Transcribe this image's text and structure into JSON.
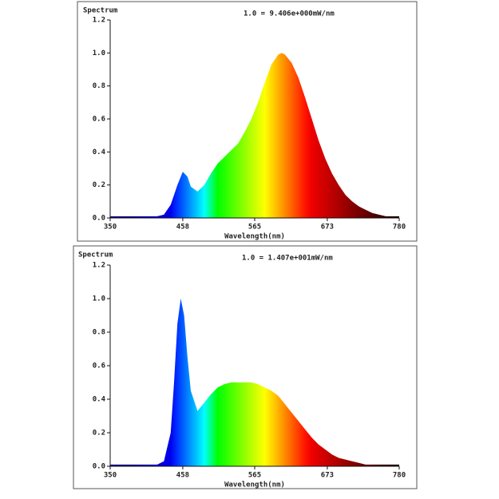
{
  "chart_data": [
    {
      "type": "area",
      "title": "Spectrum",
      "annotation": "1.0 = 9.406e+000mW/nm",
      "x_label": "Wavelength(nm)",
      "x": [
        350,
        360,
        370,
        380,
        390,
        400,
        410,
        420,
        430,
        440,
        450,
        458,
        465,
        470,
        480,
        490,
        500,
        510,
        520,
        530,
        540,
        550,
        560,
        570,
        580,
        590,
        600,
        605,
        610,
        620,
        630,
        640,
        650,
        660,
        670,
        680,
        690,
        700,
        710,
        720,
        730,
        740,
        750,
        760,
        770,
        780
      ],
      "values": [
        0.01,
        0.01,
        0.01,
        0.01,
        0.01,
        0.01,
        0.01,
        0.01,
        0.02,
        0.08,
        0.2,
        0.28,
        0.25,
        0.19,
        0.16,
        0.2,
        0.27,
        0.33,
        0.37,
        0.41,
        0.45,
        0.52,
        0.6,
        0.7,
        0.82,
        0.93,
        0.99,
        1.0,
        0.99,
        0.94,
        0.85,
        0.73,
        0.6,
        0.47,
        0.36,
        0.27,
        0.2,
        0.14,
        0.1,
        0.07,
        0.05,
        0.03,
        0.02,
        0.01,
        0.01,
        0.01
      ],
      "xlim": [
        350,
        780
      ],
      "xticks": [
        350,
        458,
        565,
        673,
        780
      ],
      "ylim": [
        0,
        1.2
      ],
      "yticks": [
        {
          "value": 0,
          "label": "0.0"
        },
        0.2,
        0.4,
        0.6,
        0.8,
        {
          "value": 1,
          "label": "1.0"
        },
        1.2
      ]
    },
    {
      "type": "area",
      "title": "Spectrum",
      "annotation": "1.0 = 1.407e+001mW/nm",
      "x_label": "Wavelength(nm)",
      "x": [
        350,
        360,
        370,
        380,
        390,
        400,
        410,
        420,
        430,
        440,
        445,
        450,
        455,
        460,
        465,
        470,
        480,
        490,
        500,
        510,
        520,
        530,
        540,
        550,
        560,
        570,
        580,
        590,
        600,
        610,
        620,
        630,
        640,
        650,
        660,
        670,
        680,
        690,
        700,
        710,
        720,
        730,
        740,
        750,
        760,
        770,
        780
      ],
      "values": [
        0.01,
        0.01,
        0.01,
        0.01,
        0.01,
        0.01,
        0.01,
        0.01,
        0.03,
        0.2,
        0.5,
        0.85,
        1.0,
        0.9,
        0.65,
        0.45,
        0.33,
        0.38,
        0.43,
        0.47,
        0.49,
        0.5,
        0.5,
        0.5,
        0.5,
        0.49,
        0.47,
        0.45,
        0.42,
        0.37,
        0.32,
        0.27,
        0.22,
        0.17,
        0.13,
        0.1,
        0.07,
        0.05,
        0.04,
        0.03,
        0.02,
        0.01,
        0.01,
        0.01,
        0.01,
        0.01,
        0.01
      ],
      "xlim": [
        350,
        780
      ],
      "xticks": [
        350,
        458,
        565,
        673,
        780
      ],
      "ylim": [
        0,
        1.2
      ],
      "yticks": [
        {
          "value": 0,
          "label": "0.0"
        },
        0.2,
        0.4,
        0.6,
        0.8,
        {
          "value": 1,
          "label": "1.0"
        },
        1.2
      ]
    }
  ]
}
